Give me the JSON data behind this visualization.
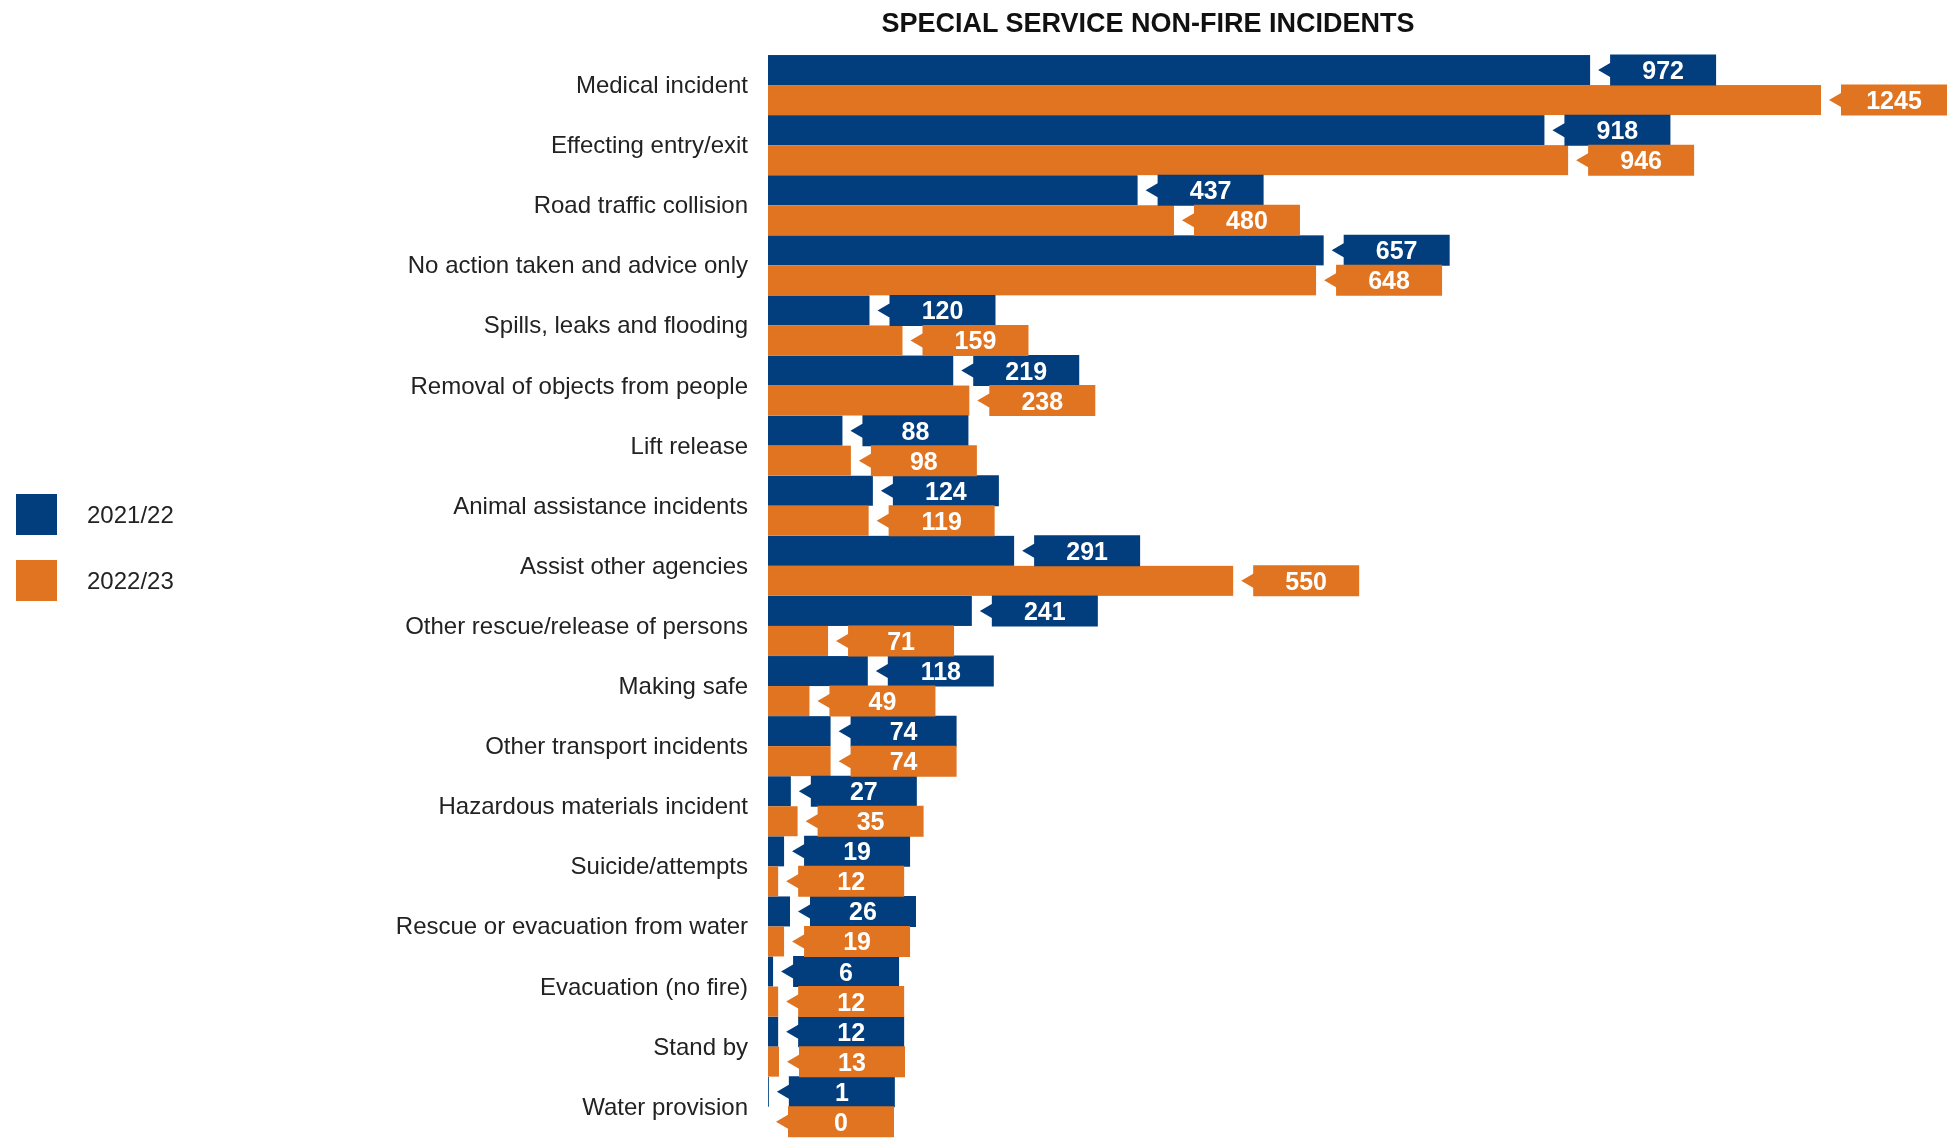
{
  "chart_data": {
    "type": "bar",
    "orientation": "horizontal",
    "title": "SPECIAL SERVICE NON-FIRE INCIDENTS",
    "categories": [
      "Medical incident",
      "Effecting entry/exit",
      "Road traffic collision",
      "No action taken and advice only",
      "Spills, leaks and flooding",
      "Removal of objects from people",
      "Lift release",
      "Animal assistance incidents",
      "Assist other agencies",
      "Other rescue/release of persons",
      "Making safe",
      "Other transport incidents",
      "Hazardous materials incident",
      "Suicide/attempts",
      "Rescue or evacuation from water",
      "Evacuation (no fire)",
      "Stand by",
      "Water provision"
    ],
    "series": [
      {
        "name": "2021/22",
        "color": "#023e7d",
        "values": [
          972,
          918,
          437,
          657,
          120,
          219,
          88,
          124,
          291,
          241,
          118,
          74,
          27,
          19,
          26,
          6,
          12,
          1
        ]
      },
      {
        "name": "2022/23",
        "color": "#e07420",
        "values": [
          1245,
          946,
          480,
          648,
          159,
          238,
          98,
          119,
          550,
          71,
          49,
          74,
          35,
          12,
          19,
          12,
          13,
          0
        ]
      }
    ],
    "data_labels": true,
    "legend": "left",
    "grid": false
  }
}
